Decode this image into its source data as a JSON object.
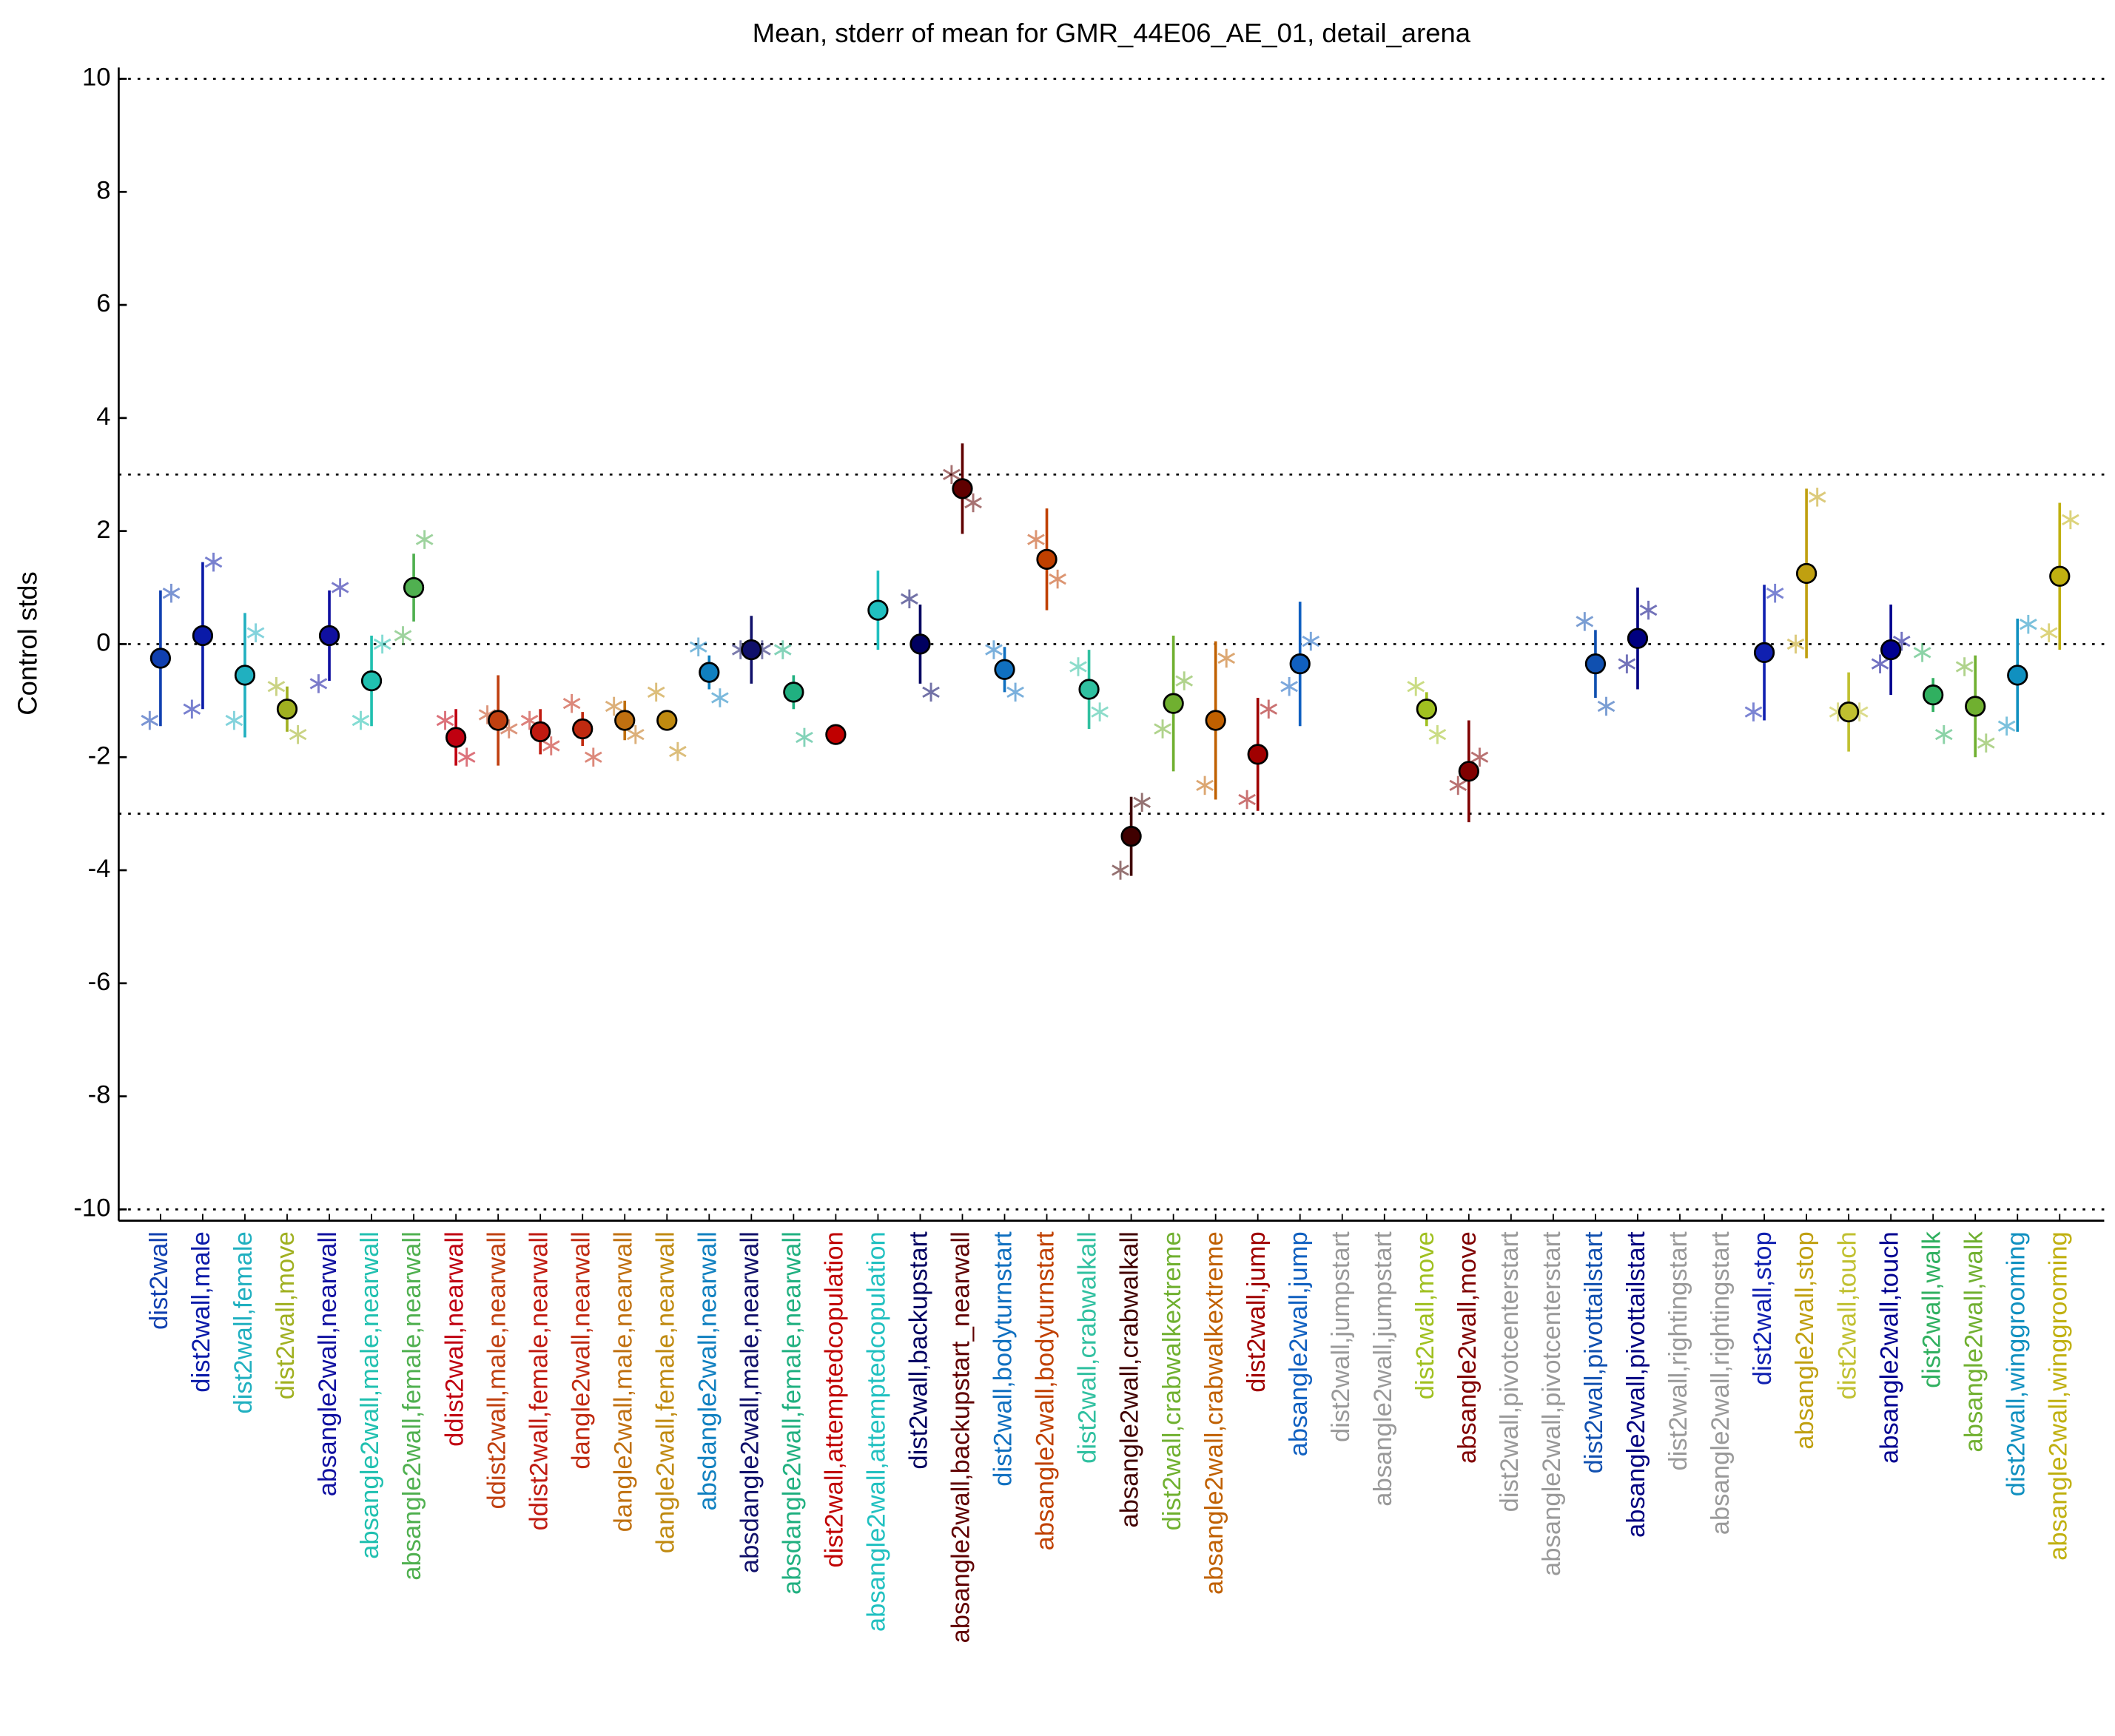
{
  "chart_data": {
    "type": "errorbar",
    "title": "Mean, stderr of mean for GMR_44E06_AE_01, detail_arena",
    "ylabel": "Control stds",
    "ylim": [
      -10.2,
      10.2
    ],
    "yticks": [
      -10,
      -8,
      -6,
      -4,
      -2,
      0,
      2,
      4,
      6,
      8,
      10
    ],
    "reference_lines": [
      10,
      3,
      0,
      -3,
      -10
    ],
    "categories": [
      "dist2wall",
      "dist2wall,male",
      "dist2wall,female",
      "dist2wall,move",
      "absangle2wall,nearwall",
      "absangle2wall,male,nearwall",
      "absangle2wall,female,nearwall",
      "ddist2wall,nearwall",
      "ddist2wall,male,nearwall",
      "ddist2wall,female,nearwall",
      "dangle2wall,nearwall",
      "dangle2wall,male,nearwall",
      "dangle2wall,female,nearwall",
      "absdangle2wall,nearwall",
      "absdangle2wall,male,nearwall",
      "absdangle2wall,female,nearwall",
      "dist2wall,attemptedcopulation",
      "absangle2wall,attemptedcopulation",
      "dist2wall,backupstart",
      "absangle2wall,backupstart_nearwall",
      "dist2wall,bodyturnstart",
      "absangle2wall,bodyturnstart",
      "dist2wall,crabwalkall",
      "absangle2wall,crabwalkall",
      "dist2wall,crabwalkextreme",
      "absangle2wall,crabwalkextreme",
      "dist2wall,jump",
      "absangle2wall,jump",
      "dist2wall,jumpstart",
      "absangle2wall,jumpstart",
      "dist2wall,move",
      "absangle2wall,move",
      "dist2wall,pivotcenterstart",
      "absangle2wall,pivotcenterstart",
      "dist2wall,pivottailstart",
      "absangle2wall,pivottailstart",
      "dist2wall,rightingstart",
      "absangle2wall,rightingstart",
      "dist2wall,stop",
      "absangle2wall,stop",
      "dist2wall,touch",
      "absangle2wall,touch",
      "dist2wall,walk",
      "absangle2wall,walk",
      "dist2wall,winggrooming",
      "absangle2wall,winggrooming"
    ],
    "colors": [
      "#1040b0",
      "#0a1aa8",
      "#20b0c0",
      "#a0b020",
      "#1010a0",
      "#20c0b0",
      "#50b050",
      "#c00010",
      "#c04010",
      "#c01a10",
      "#c02a10",
      "#c07010",
      "#c08a10",
      "#1080c0",
      "#10106a",
      "#20b080",
      "#c00000",
      "#20c0c0",
      "#000060",
      "#600000",
      "#1070c0",
      "#c04000",
      "#30c0a0",
      "#400000",
      "#70b030",
      "#c06000",
      "#a00000",
      "#1060c0",
      "#999999",
      "#999999",
      "#a0c020",
      "#800000",
      "#999999",
      "#999999",
      "#1050b0",
      "#000080",
      "#999999",
      "#999999",
      "#1020b0",
      "#c0a010",
      "#c0c030",
      "#000090",
      "#30b060",
      "#70b030",
      "#1090c0",
      "#c0b010"
    ],
    "values": [
      -0.25,
      0.15,
      -0.55,
      -1.15,
      0.15,
      -0.65,
      1.0,
      -1.65,
      -1.35,
      -1.55,
      -1.5,
      -1.35,
      -1.35,
      -0.5,
      -0.1,
      -0.85,
      -1.6,
      0.6,
      0.0,
      2.75,
      -0.45,
      1.5,
      -0.8,
      -3.4,
      -1.05,
      -1.35,
      -1.95,
      -0.35,
      null,
      null,
      -1.15,
      -2.25,
      null,
      null,
      -0.35,
      0.1,
      null,
      null,
      -0.15,
      1.25,
      -1.2,
      -0.1,
      -0.9,
      -1.1,
      -0.55,
      1.2
    ],
    "errors": [
      1.2,
      1.3,
      1.1,
      0.4,
      0.8,
      0.8,
      0.6,
      0.5,
      0.8,
      0.4,
      0.3,
      0.35,
      0.15,
      0.3,
      0.6,
      0.3,
      0.1,
      0.7,
      0.7,
      0.8,
      0.4,
      0.9,
      0.7,
      0.7,
      1.2,
      1.4,
      1.0,
      1.1,
      null,
      null,
      0.3,
      0.9,
      null,
      null,
      0.6,
      0.9,
      null,
      null,
      1.2,
      1.5,
      0.7,
      0.8,
      0.3,
      0.9,
      1.0,
      1.3
    ],
    "series": [
      {
        "values": [
          -1.35,
          -1.15,
          -1.35,
          -0.75,
          -0.7,
          -1.35,
          0.15,
          -1.35,
          -1.25,
          -1.35,
          -1.05,
          -1.1,
          -0.85,
          -0.05,
          -0.1,
          -0.1,
          null,
          null,
          0.8,
          3.0,
          -0.1,
          1.85,
          -0.4,
          -4.0,
          -1.5,
          -2.5,
          -2.75,
          -0.75,
          null,
          null,
          -0.75,
          -2.5,
          null,
          null,
          0.4,
          -0.35,
          null,
          null,
          -1.2,
          0.0,
          -1.2,
          -0.35,
          -0.15,
          -0.4,
          -1.45,
          0.2
        ]
      },
      {
        "values": [
          0.9,
          1.45,
          0.2,
          -1.6,
          1.0,
          0.0,
          1.85,
          -2.0,
          -1.5,
          -1.8,
          -2.0,
          -1.6,
          -1.9,
          -0.95,
          -0.1,
          -1.65,
          null,
          null,
          -0.85,
          2.5,
          -0.85,
          1.15,
          -1.2,
          -2.8,
          -0.65,
          -0.25,
          -1.15,
          0.05,
          null,
          null,
          -1.6,
          -2.0,
          null,
          null,
          -1.1,
          0.6,
          null,
          null,
          0.9,
          2.6,
          -1.2,
          0.05,
          -1.6,
          -1.75,
          0.35,
          2.2
        ]
      }
    ]
  }
}
